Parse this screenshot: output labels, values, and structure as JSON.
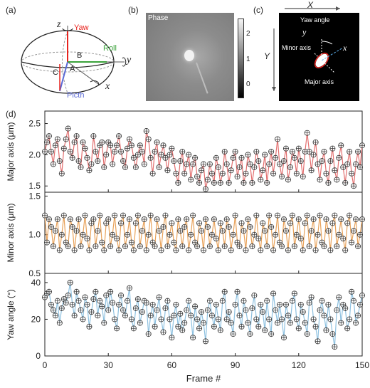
{
  "panel_labels": {
    "a": "(a)",
    "b": "(b)",
    "c": "(c)",
    "d": "(d)"
  },
  "panel_a": {
    "axes": {
      "z": "z",
      "y": "y",
      "x": "x"
    },
    "rotations": {
      "yaw": "Yaw",
      "roll": "Roll",
      "pitch": "Picth"
    },
    "points": {
      "A": "A",
      "B": "B",
      "C": "C"
    },
    "colors": {
      "yaw": "#e8231e",
      "roll": "#3aa23a",
      "pitch": "#5b6ad6"
    }
  },
  "panel_b": {
    "title": "Phase",
    "colorbar_ticks": [
      "2",
      "1",
      "0"
    ]
  },
  "panel_c": {
    "X": "X",
    "Y": "Y",
    "x": "x",
    "y": "y",
    "yaw_angle": "Yaw angle",
    "minor_axis": "Minor axis",
    "major_axis": "Major axis"
  },
  "chart_data": [
    {
      "type": "line",
      "ylabel": "Major axis (μm)",
      "ylim": [
        1.4,
        2.7
      ],
      "yticks": [
        "2.5",
        "2.0",
        "1.5"
      ],
      "ytick_values": [
        2.5,
        2.0,
        1.5
      ],
      "color": "#e36f6f",
      "x": [
        0,
        1,
        2,
        3,
        4,
        5,
        6,
        7,
        8,
        9,
        10,
        11,
        12,
        13,
        14,
        15,
        16,
        17,
        18,
        19,
        20,
        21,
        22,
        23,
        24,
        25,
        26,
        27,
        28,
        29,
        30,
        31,
        32,
        33,
        34,
        35,
        36,
        37,
        38,
        39,
        40,
        41,
        42,
        43,
        44,
        45,
        46,
        47,
        48,
        49,
        50,
        51,
        52,
        53,
        54,
        55,
        56,
        57,
        58,
        59,
        60,
        61,
        62,
        63,
        64,
        65,
        66,
        67,
        68,
        69,
        70,
        71,
        72,
        73,
        74,
        75,
        76,
        77,
        78,
        79,
        80,
        81,
        82,
        83,
        84,
        85,
        86,
        87,
        88,
        89,
        90,
        91,
        92,
        93,
        94,
        95,
        96,
        97,
        98,
        99,
        100,
        101,
        102,
        103,
        104,
        105,
        106,
        107,
        108,
        109,
        110,
        111,
        112,
        113,
        114,
        115,
        116,
        117,
        118,
        119,
        120,
        121,
        122,
        123,
        124,
        125,
        126,
        127,
        128,
        129,
        130,
        131,
        132,
        133,
        134,
        135,
        136,
        137,
        138,
        139,
        140,
        141,
        142,
        143,
        144,
        145,
        146,
        147,
        148,
        149,
        150
      ],
      "values": [
        2.05,
        2.2,
        2.3,
        2.05,
        1.85,
        2.15,
        2.25,
        1.9,
        1.7,
        2.1,
        2.25,
        2.42,
        2.05,
        1.95,
        2.2,
        2.3,
        1.9,
        1.8,
        2.2,
        2.1,
        1.95,
        1.75,
        1.85,
        2.3,
        2.05,
        1.9,
        2.15,
        2.2,
        1.8,
        2.0,
        2.2,
        2.15,
        1.85,
        2.05,
        2.15,
        2.3,
        2.05,
        1.9,
        1.8,
        2.1,
        2.25,
        2.15,
        1.95,
        1.8,
        2.0,
        2.15,
        2.05,
        1.85,
        2.38,
        2.25,
        1.95,
        1.7,
        2.05,
        2.2,
        1.8,
        2.0,
        2.15,
        1.95,
        1.75,
        2.0,
        2.1,
        1.9,
        1.7,
        1.55,
        1.9,
        2.05,
        1.7,
        1.85,
        2.0,
        1.6,
        1.85,
        1.95,
        1.65,
        1.55,
        1.75,
        1.85,
        1.45,
        1.6,
        1.85,
        1.7,
        1.55,
        1.95,
        1.8,
        1.55,
        1.7,
        2.05,
        1.85,
        1.55,
        1.75,
        1.95,
        2.05,
        1.65,
        1.8,
        1.95,
        1.55,
        1.7,
        2.0,
        1.85,
        1.55,
        1.8,
        2.05,
        1.9,
        1.6,
        1.75,
        2.0,
        1.55,
        1.85,
        2.05,
        1.7,
        1.95,
        2.25,
        1.85,
        1.65,
        1.9,
        2.1,
        1.6,
        1.8,
        2.05,
        1.95,
        1.7,
        2.1,
        1.9,
        1.65,
        2.05,
        2.35,
        2.05,
        1.75,
        2.0,
        2.2,
        1.85,
        1.6,
        1.9,
        2.05,
        1.7,
        1.55,
        1.9,
        2.1,
        1.75,
        1.6,
        1.95,
        2.15,
        1.8,
        1.55,
        1.85,
        2.05,
        1.7,
        1.5,
        1.85,
        2.05,
        1.8,
        2.15
      ]
    },
    {
      "type": "line",
      "ylabel": "Minor axis (μm)",
      "ylim": [
        0.5,
        1.55
      ],
      "yticks": [
        "1.5",
        "1.0",
        "0.5"
      ],
      "ytick_values": [
        1.5,
        1.0,
        0.5
      ],
      "color": "#e8a25a",
      "x": [
        0,
        1,
        2,
        3,
        4,
        5,
        6,
        7,
        8,
        9,
        10,
        11,
        12,
        13,
        14,
        15,
        16,
        17,
        18,
        19,
        20,
        21,
        22,
        23,
        24,
        25,
        26,
        27,
        28,
        29,
        30,
        31,
        32,
        33,
        34,
        35,
        36,
        37,
        38,
        39,
        40,
        41,
        42,
        43,
        44,
        45,
        46,
        47,
        48,
        49,
        50,
        51,
        52,
        53,
        54,
        55,
        56,
        57,
        58,
        59,
        60,
        61,
        62,
        63,
        64,
        65,
        66,
        67,
        68,
        69,
        70,
        71,
        72,
        73,
        74,
        75,
        76,
        77,
        78,
        79,
        80,
        81,
        82,
        83,
        84,
        85,
        86,
        87,
        88,
        89,
        90,
        91,
        92,
        93,
        94,
        95,
        96,
        97,
        98,
        99,
        100,
        101,
        102,
        103,
        104,
        105,
        106,
        107,
        108,
        109,
        110,
        111,
        112,
        113,
        114,
        115,
        116,
        117,
        118,
        119,
        120,
        121,
        122,
        123,
        124,
        125,
        126,
        127,
        128,
        129,
        130,
        131,
        132,
        133,
        134,
        135,
        136,
        137,
        138,
        139,
        140,
        141,
        142,
        143,
        144,
        145,
        146,
        147,
        148,
        149,
        150
      ],
      "values": [
        1.25,
        0.9,
        1.2,
        1.1,
        0.85,
        1.05,
        1.2,
        0.8,
        1.0,
        1.25,
        0.9,
        0.85,
        1.2,
        1.1,
        0.8,
        1.05,
        1.2,
        0.85,
        1.0,
        1.25,
        0.95,
        0.8,
        1.15,
        1.2,
        0.85,
        1.05,
        1.25,
        0.9,
        0.8,
        1.15,
        1.2,
        0.85,
        1.0,
        1.25,
        0.95,
        0.8,
        1.15,
        1.25,
        0.85,
        1.0,
        1.2,
        0.9,
        0.8,
        1.15,
        1.25,
        0.85,
        1.05,
        1.2,
        0.8,
        1.0,
        1.25,
        0.9,
        0.85,
        1.2,
        1.05,
        0.8,
        1.1,
        1.25,
        0.85,
        1.0,
        1.15,
        0.9,
        0.8,
        1.2,
        1.05,
        0.85,
        1.1,
        1.2,
        0.8,
        1.0,
        1.25,
        0.9,
        0.85,
        1.15,
        1.05,
        0.8,
        1.2,
        1.1,
        0.85,
        1.0,
        1.2,
        0.95,
        0.8,
        1.15,
        1.05,
        0.85,
        1.2,
        1.1,
        0.8,
        1.0,
        1.25,
        0.9,
        0.85,
        1.15,
        1.05,
        0.8,
        1.2,
        1.1,
        0.85,
        1.0,
        1.25,
        0.95,
        0.8,
        1.15,
        1.05,
        0.85,
        1.25,
        1.1,
        0.8,
        1.0,
        1.25,
        0.9,
        0.85,
        1.2,
        1.05,
        0.8,
        1.15,
        1.25,
        0.85,
        1.0,
        1.2,
        0.95,
        0.8,
        1.15,
        1.25,
        0.85,
        1.05,
        1.2,
        0.8,
        1.0,
        1.25,
        0.9,
        0.85,
        1.2,
        1.05,
        0.8,
        1.15,
        1.25,
        0.85,
        1.0,
        1.2,
        0.95,
        0.8,
        1.15,
        1.25,
        0.9,
        1.05,
        1.2,
        0.85,
        1.0,
        1.2
      ]
    },
    {
      "type": "line",
      "ylabel": "Yaw angle (°)",
      "ylim": [
        0,
        45
      ],
      "yticks": [
        "40",
        "20",
        "0"
      ],
      "ytick_values": [
        40,
        20,
        0
      ],
      "xlabel": "Frame #",
      "xlim": [
        0,
        150
      ],
      "xticks": [
        "0",
        "30",
        "60",
        "90",
        "120",
        "150"
      ],
      "xtick_values": [
        0,
        30,
        60,
        90,
        120,
        150
      ],
      "color": "#8ec1e0",
      "x": [
        0,
        1,
        2,
        3,
        4,
        5,
        6,
        7,
        8,
        9,
        10,
        11,
        12,
        13,
        14,
        15,
        16,
        17,
        18,
        19,
        20,
        21,
        22,
        23,
        24,
        25,
        26,
        27,
        28,
        29,
        30,
        31,
        32,
        33,
        34,
        35,
        36,
        37,
        38,
        39,
        40,
        41,
        42,
        43,
        44,
        45,
        46,
        47,
        48,
        49,
        50,
        51,
        52,
        53,
        54,
        55,
        56,
        57,
        58,
        59,
        60,
        61,
        62,
        63,
        64,
        65,
        66,
        67,
        68,
        69,
        70,
        71,
        72,
        73,
        74,
        75,
        76,
        77,
        78,
        79,
        80,
        81,
        82,
        83,
        84,
        85,
        86,
        87,
        88,
        89,
        90,
        91,
        92,
        93,
        94,
        95,
        96,
        97,
        98,
        99,
        100,
        101,
        102,
        103,
        104,
        105,
        106,
        107,
        108,
        109,
        110,
        111,
        112,
        113,
        114,
        115,
        116,
        117,
        118,
        119,
        120,
        121,
        122,
        123,
        124,
        125,
        126,
        127,
        128,
        129,
        130,
        131,
        132,
        133,
        134,
        135,
        136,
        137,
        138,
        139,
        140,
        141,
        142,
        143,
        144,
        145,
        146,
        147,
        148,
        149,
        150
      ],
      "values": [
        32,
        34,
        35,
        28,
        25,
        22,
        30,
        18,
        26,
        31,
        29,
        33,
        40,
        28,
        22,
        35,
        30,
        25,
        20,
        32,
        28,
        16,
        24,
        31,
        35,
        22,
        30,
        27,
        18,
        33,
        25,
        35,
        29,
        20,
        15,
        28,
        33,
        25,
        22,
        30,
        37,
        20,
        15,
        26,
        31,
        18,
        24,
        30,
        29,
        12,
        22,
        28,
        16,
        25,
        32,
        20,
        13,
        26,
        30,
        20,
        10,
        22,
        28,
        16,
        23,
        14,
        18,
        25,
        30,
        22,
        10,
        27,
        20,
        15,
        24,
        18,
        8,
        25,
        30,
        22,
        16,
        28,
        20,
        14,
        30,
        35,
        20,
        24,
        18,
        12,
        28,
        35,
        22,
        16,
        30,
        25,
        18,
        12,
        26,
        33,
        20,
        16,
        28,
        24,
        14,
        30,
        20,
        12,
        34,
        25,
        18,
        28,
        20,
        10,
        28,
        22,
        18,
        30,
        34,
        20,
        15,
        28,
        24,
        18,
        12,
        29,
        32,
        20,
        16,
        8,
        25,
        30,
        22,
        14,
        28,
        20,
        12,
        5,
        25,
        32,
        18,
        28,
        26,
        15,
        20,
        35,
        30,
        18,
        22,
        28,
        33
      ]
    }
  ]
}
